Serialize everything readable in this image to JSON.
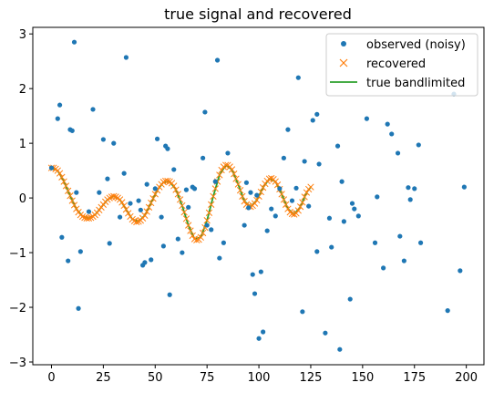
{
  "chart_data": {
    "type": "line",
    "title": "true signal and recovered",
    "xlabel": "",
    "ylabel": "",
    "xlim": [
      -9,
      208.5
    ],
    "ylim": [
      -3.05,
      3.12
    ],
    "xticks": [
      0,
      25,
      50,
      75,
      100,
      125,
      150,
      175,
      200
    ],
    "xtick_labels": [
      "0",
      "25",
      "50",
      "75",
      "100",
      "125",
      "150",
      "175",
      "200"
    ],
    "yticks": [
      -3,
      -2,
      -1,
      0,
      1,
      2,
      3
    ],
    "ytick_labels": [
      "−3",
      "−2",
      "−1",
      "0",
      "1",
      "2",
      "3"
    ],
    "grid": false,
    "legend_position": "top-right",
    "colors": {
      "observed": "#1f77b4",
      "recovered": "#ff7f0e",
      "true": "#2ca02c"
    },
    "series": [
      {
        "name": "observed (noisy)",
        "kind": "scatter",
        "points": [
          [
            0,
            0.55
          ],
          [
            3,
            1.45
          ],
          [
            4,
            1.7
          ],
          [
            5,
            -0.72
          ],
          [
            8,
            -1.15
          ],
          [
            9,
            1.25
          ],
          [
            10,
            1.23
          ],
          [
            11,
            2.85
          ],
          [
            12,
            0.1
          ],
          [
            13,
            -2.02
          ],
          [
            14,
            -0.98
          ],
          [
            18,
            -0.25
          ],
          [
            20,
            1.62
          ],
          [
            23,
            0.1
          ],
          [
            25,
            1.07
          ],
          [
            27,
            0.35
          ],
          [
            28,
            -0.83
          ],
          [
            30,
            1.0
          ],
          [
            33,
            -0.35
          ],
          [
            35,
            0.45
          ],
          [
            36,
            2.57
          ],
          [
            38,
            -0.1
          ],
          [
            42,
            -0.05
          ],
          [
            43,
            -0.22
          ],
          [
            44,
            -1.23
          ],
          [
            45,
            -1.18
          ],
          [
            46,
            0.25
          ],
          [
            48,
            -1.13
          ],
          [
            50,
            0.17
          ],
          [
            51,
            1.08
          ],
          [
            53,
            -0.35
          ],
          [
            54,
            -0.88
          ],
          [
            55,
            0.95
          ],
          [
            56,
            0.9
          ],
          [
            57,
            -1.77
          ],
          [
            59,
            0.52
          ],
          [
            61,
            -0.75
          ],
          [
            63,
            -1.0
          ],
          [
            65,
            0.15
          ],
          [
            66,
            -0.17
          ],
          [
            68,
            0.2
          ],
          [
            69,
            0.17
          ],
          [
            73,
            0.73
          ],
          [
            74,
            1.57
          ],
          [
            75,
            -0.5
          ],
          [
            77,
            -0.58
          ],
          [
            79,
            0.3
          ],
          [
            80,
            2.52
          ],
          [
            81,
            -1.1
          ],
          [
            83,
            -0.82
          ],
          [
            85,
            0.82
          ],
          [
            93,
            -0.5
          ],
          [
            94,
            0.28
          ],
          [
            95,
            -0.18
          ],
          [
            96,
            0.1
          ],
          [
            97,
            -1.4
          ],
          [
            98,
            -1.75
          ],
          [
            99,
            0.05
          ],
          [
            100,
            -2.57
          ],
          [
            101,
            -1.35
          ],
          [
            102,
            -2.45
          ],
          [
            104,
            -0.6
          ],
          [
            106,
            -0.2
          ],
          [
            108,
            -0.33
          ],
          [
            110,
            0.17
          ],
          [
            112,
            0.73
          ],
          [
            114,
            1.25
          ],
          [
            116,
            -0.05
          ],
          [
            118,
            0.18
          ],
          [
            119,
            2.2
          ],
          [
            121,
            -2.08
          ],
          [
            122,
            0.67
          ],
          [
            124,
            -0.15
          ],
          [
            126,
            1.42
          ],
          [
            128,
            1.53
          ],
          [
            129,
            0.62
          ],
          [
            128,
            -0.98
          ],
          [
            132,
            -2.47
          ],
          [
            134,
            -0.37
          ],
          [
            135,
            -0.9
          ],
          [
            138,
            0.95
          ],
          [
            139,
            -2.77
          ],
          [
            140,
            0.3
          ],
          [
            141,
            -0.43
          ],
          [
            144,
            -1.85
          ],
          [
            145,
            -0.1
          ],
          [
            146,
            -0.2
          ],
          [
            148,
            -0.33
          ],
          [
            152,
            1.45
          ],
          [
            156,
            -0.82
          ],
          [
            157,
            0.02
          ],
          [
            160,
            -1.28
          ],
          [
            162,
            1.35
          ],
          [
            164,
            1.17
          ],
          [
            167,
            0.82
          ],
          [
            168,
            -0.7
          ],
          [
            170,
            -1.15
          ],
          [
            172,
            0.19
          ],
          [
            173,
            -0.03
          ],
          [
            175,
            0.17
          ],
          [
            177,
            0.97
          ],
          [
            178,
            -0.82
          ],
          [
            191,
            -2.06
          ],
          [
            194,
            1.9
          ],
          [
            197,
            -1.33
          ],
          [
            199,
            0.2
          ]
        ]
      },
      {
        "name": "recovered",
        "kind": "markers-x",
        "points": [
          [
            0,
            0.55
          ],
          [
            1,
            0.55
          ],
          [
            2,
            0.53
          ],
          [
            3,
            0.5
          ],
          [
            4,
            0.45
          ],
          [
            5,
            0.38
          ],
          [
            6,
            0.3
          ],
          [
            7,
            0.22
          ],
          [
            8,
            0.13
          ],
          [
            9,
            0.04
          ],
          [
            10,
            -0.05
          ],
          [
            11,
            -0.13
          ],
          [
            12,
            -0.2
          ],
          [
            13,
            -0.26
          ],
          [
            14,
            -0.31
          ],
          [
            15,
            -0.34
          ],
          [
            16,
            -0.36
          ],
          [
            17,
            -0.37
          ],
          [
            18,
            -0.37
          ],
          [
            19,
            -0.36
          ],
          [
            20,
            -0.34
          ],
          [
            21,
            -0.31
          ],
          [
            22,
            -0.27
          ],
          [
            23,
            -0.22
          ],
          [
            24,
            -0.17
          ],
          [
            25,
            -0.12
          ],
          [
            26,
            -0.07
          ],
          [
            27,
            -0.03
          ],
          [
            28,
            0.0
          ],
          [
            29,
            0.02
          ],
          [
            30,
            0.03
          ],
          [
            31,
            0.02
          ],
          [
            32,
            0.0
          ],
          [
            33,
            -0.03
          ],
          [
            34,
            -0.08
          ],
          [
            35,
            -0.14
          ],
          [
            36,
            -0.21
          ],
          [
            37,
            -0.28
          ],
          [
            38,
            -0.34
          ],
          [
            39,
            -0.39
          ],
          [
            40,
            -0.42
          ],
          [
            41,
            -0.44
          ],
          [
            42,
            -0.43
          ],
          [
            43,
            -0.41
          ],
          [
            44,
            -0.37
          ],
          [
            45,
            -0.32
          ],
          [
            46,
            -0.25
          ],
          [
            47,
            -0.17
          ],
          [
            48,
            -0.09
          ],
          [
            49,
            -0.01
          ],
          [
            50,
            0.07
          ],
          [
            51,
            0.14
          ],
          [
            52,
            0.2
          ],
          [
            53,
            0.25
          ],
          [
            54,
            0.29
          ],
          [
            55,
            0.31
          ],
          [
            56,
            0.31
          ],
          [
            57,
            0.3
          ],
          [
            58,
            0.27
          ],
          [
            59,
            0.22
          ],
          [
            60,
            0.15
          ],
          [
            61,
            0.07
          ],
          [
            62,
            -0.03
          ],
          [
            63,
            -0.14
          ],
          [
            64,
            -0.26
          ],
          [
            65,
            -0.38
          ],
          [
            66,
            -0.5
          ],
          [
            67,
            -0.6
          ],
          [
            68,
            -0.69
          ],
          [
            69,
            -0.75
          ],
          [
            70,
            -0.77
          ],
          [
            71,
            -0.76
          ],
          [
            72,
            -0.72
          ],
          [
            73,
            -0.64
          ],
          [
            74,
            -0.54
          ],
          [
            75,
            -0.41
          ],
          [
            76,
            -0.27
          ],
          [
            77,
            -0.12
          ],
          [
            78,
            0.03
          ],
          [
            79,
            0.17
          ],
          [
            80,
            0.3
          ],
          [
            81,
            0.42
          ],
          [
            82,
            0.51
          ],
          [
            83,
            0.57
          ],
          [
            84,
            0.6
          ],
          [
            85,
            0.6
          ],
          [
            86,
            0.57
          ],
          [
            87,
            0.52
          ],
          [
            88,
            0.44
          ],
          [
            89,
            0.35
          ],
          [
            90,
            0.25
          ],
          [
            91,
            0.14
          ],
          [
            92,
            0.03
          ],
          [
            93,
            -0.06
          ],
          [
            94,
            -0.12
          ],
          [
            95,
            -0.15
          ],
          [
            96,
            -0.16
          ],
          [
            97,
            -0.14
          ],
          [
            98,
            -0.1
          ],
          [
            99,
            -0.04
          ],
          [
            100,
            0.03
          ],
          [
            101,
            0.11
          ],
          [
            102,
            0.19
          ],
          [
            103,
            0.26
          ],
          [
            104,
            0.31
          ],
          [
            105,
            0.35
          ],
          [
            106,
            0.36
          ],
          [
            107,
            0.34
          ],
          [
            108,
            0.3
          ],
          [
            109,
            0.24
          ],
          [
            110,
            0.16
          ],
          [
            111,
            0.07
          ],
          [
            112,
            -0.03
          ],
          [
            113,
            -0.12
          ],
          [
            114,
            -0.2
          ],
          [
            115,
            -0.26
          ],
          [
            116,
            -0.29
          ],
          [
            117,
            -0.3
          ],
          [
            118,
            -0.28
          ],
          [
            119,
            -0.23
          ],
          [
            120,
            -0.16
          ],
          [
            121,
            -0.08
          ],
          [
            122,
            0.02
          ],
          [
            123,
            0.1
          ],
          [
            124,
            0.16
          ],
          [
            125,
            0.2
          ]
        ]
      },
      {
        "name": "true bandlimited",
        "kind": "line",
        "points": [
          [
            0,
            0.55
          ],
          [
            3,
            0.5
          ],
          [
            6,
            0.3
          ],
          [
            9,
            0.04
          ],
          [
            12,
            -0.2
          ],
          [
            15,
            -0.34
          ],
          [
            18,
            -0.37
          ],
          [
            21,
            -0.31
          ],
          [
            24,
            -0.17
          ],
          [
            27,
            -0.03
          ],
          [
            30,
            0.03
          ],
          [
            33,
            -0.03
          ],
          [
            36,
            -0.21
          ],
          [
            39,
            -0.39
          ],
          [
            42,
            -0.43
          ],
          [
            45,
            -0.32
          ],
          [
            48,
            -0.09
          ],
          [
            51,
            0.14
          ],
          [
            54,
            0.29
          ],
          [
            57,
            0.3
          ],
          [
            60,
            0.15
          ],
          [
            63,
            -0.14
          ],
          [
            66,
            -0.5
          ],
          [
            69,
            -0.75
          ],
          [
            72,
            -0.72
          ],
          [
            75,
            -0.41
          ],
          [
            78,
            0.03
          ],
          [
            81,
            0.42
          ],
          [
            84,
            0.6
          ],
          [
            87,
            0.52
          ],
          [
            90,
            0.25
          ],
          [
            93,
            -0.06
          ],
          [
            96,
            -0.16
          ],
          [
            99,
            -0.04
          ],
          [
            102,
            0.19
          ],
          [
            105,
            0.35
          ],
          [
            108,
            0.3
          ],
          [
            111,
            0.07
          ],
          [
            114,
            -0.2
          ],
          [
            117,
            -0.3
          ],
          [
            120,
            -0.16
          ],
          [
            123,
            0.1
          ],
          [
            125,
            0.2
          ]
        ]
      }
    ]
  }
}
